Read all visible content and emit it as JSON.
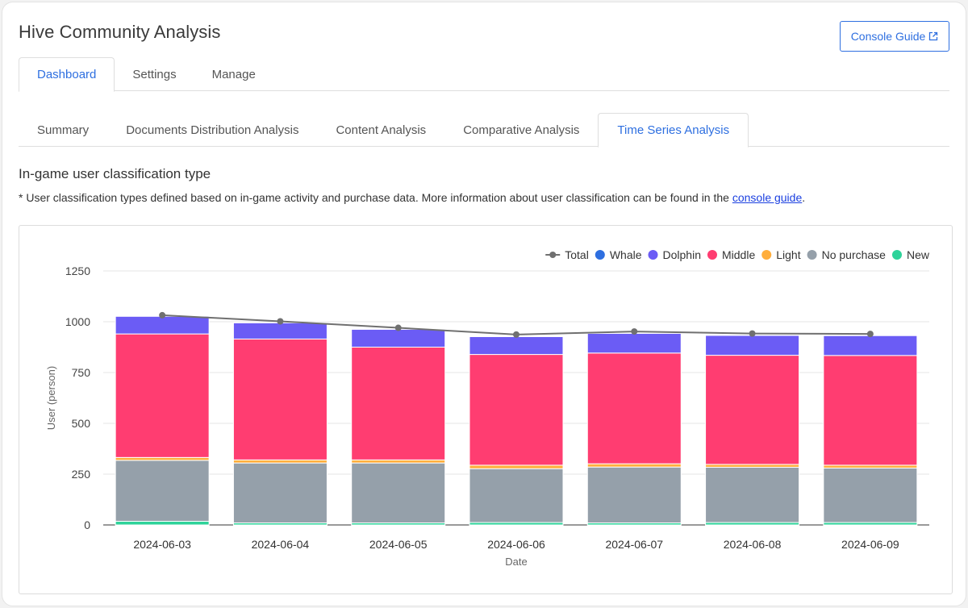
{
  "header": {
    "title": "Hive Community Analysis",
    "guide_button": "Console Guide"
  },
  "top_tabs": [
    {
      "label": "Dashboard",
      "active": true
    },
    {
      "label": "Settings",
      "active": false
    },
    {
      "label": "Manage",
      "active": false
    }
  ],
  "sub_tabs": [
    {
      "label": "Summary",
      "active": false
    },
    {
      "label": "Documents Distribution Analysis",
      "active": false
    },
    {
      "label": "Content Analysis",
      "active": false
    },
    {
      "label": "Comparative Analysis",
      "active": false
    },
    {
      "label": "Time Series Analysis",
      "active": true
    }
  ],
  "section": {
    "title": "In-game user classification type",
    "note_prefix": "* User classification types defined based on in-game activity and purchase data. More information about user classification can be found in the ",
    "note_link": "console guide",
    "note_suffix": "."
  },
  "chart_data": {
    "type": "bar",
    "stacked": true,
    "categories": [
      "2024-06-03",
      "2024-06-04",
      "2024-06-05",
      "2024-06-06",
      "2024-06-07",
      "2024-06-08",
      "2024-06-09"
    ],
    "xlabel": "Date",
    "ylabel": "User (person)",
    "ylim": [
      0,
      1250
    ],
    "yticks": [
      0,
      250,
      500,
      750,
      1000,
      1250
    ],
    "grid": true,
    "legend_position": "top-right",
    "series": [
      {
        "name": "New",
        "color": "#2ed39a",
        "values": [
          18,
          10,
          10,
          12,
          10,
          12,
          12
        ]
      },
      {
        "name": "No purchase",
        "color": "#95a0aa",
        "values": [
          300,
          295,
          295,
          265,
          275,
          272,
          268
        ]
      },
      {
        "name": "Light",
        "color": "#ffae3c",
        "values": [
          14,
          15,
          15,
          17,
          16,
          14,
          14
        ]
      },
      {
        "name": "Middle",
        "color": "#ff3d71",
        "values": [
          608,
          595,
          555,
          545,
          545,
          537,
          540
        ]
      },
      {
        "name": "Dolphin",
        "color": "#6b5cf5",
        "values": [
          87,
          80,
          88,
          88,
          97,
          98,
          98
        ]
      },
      {
        "name": "Whale",
        "color": "#2e6fe0",
        "values": [
          2,
          2,
          2,
          2,
          2,
          2,
          3
        ]
      }
    ],
    "total": {
      "name": "Total",
      "color": "#707070",
      "values": [
        1032,
        1002,
        970,
        937,
        952,
        942,
        940
      ]
    },
    "legend_order": [
      "Total",
      "Whale",
      "Dolphin",
      "Middle",
      "Light",
      "No purchase",
      "New"
    ]
  }
}
